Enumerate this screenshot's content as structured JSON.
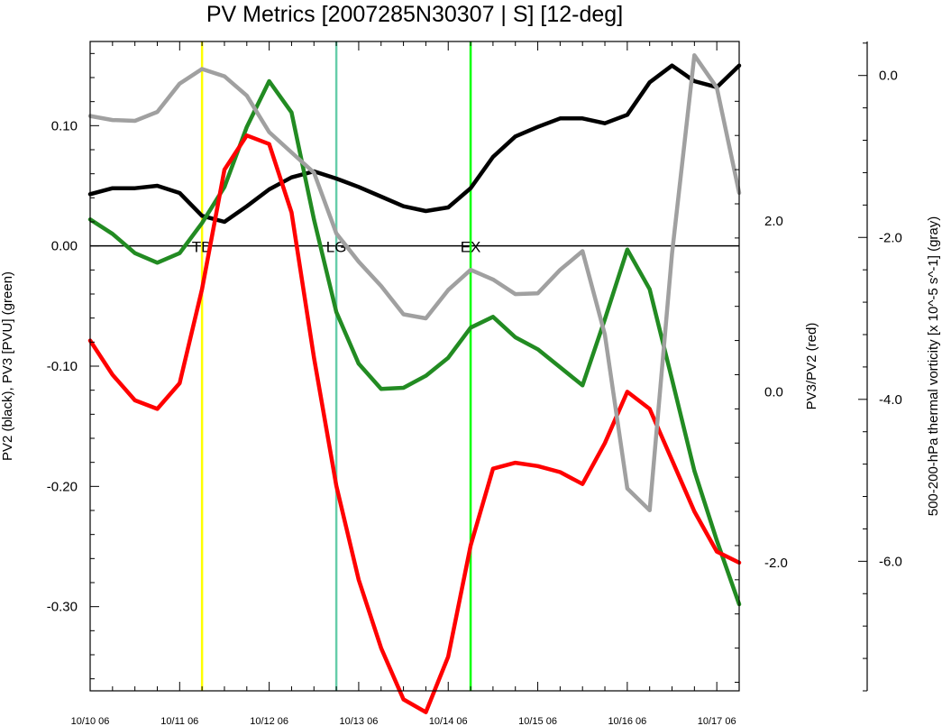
{
  "chart_data": {
    "type": "line",
    "title": "PV Metrics [2007285N30307 | S] [12-deg]",
    "xlabel": "",
    "ylabel_left": "PV2 (black), PV3 [PVU] (green)",
    "ylabel_right": "PV3/PV2 (red)",
    "ylabel_far_right": "500-200-hPa thermal vorticity [x 10^-5 s^-1] (gray)",
    "x_tick_labels": [
      "10/10 06",
      "10/11 06",
      "10/12 06",
      "10/13 06",
      "10/14 06",
      "10/15 06",
      "10/16 06",
      "10/17 06"
    ],
    "x_tick_values": [
      0,
      4,
      8,
      12,
      16,
      20,
      24,
      28
    ],
    "xlim": [
      0,
      29
    ],
    "left_axis": {
      "ylim": [
        -0.37,
        0.17
      ],
      "tick_values": [
        0.1,
        0.0,
        -0.1,
        -0.2,
        -0.3
      ],
      "tick_labels": [
        "0.10",
        "0.00",
        "-0.10",
        "-0.20",
        "-0.30"
      ]
    },
    "right_axis": {
      "ylim": [
        -3.5,
        4.1
      ],
      "tick_values": [
        2.0,
        0.0,
        -2.0
      ],
      "tick_labels": [
        "2.0",
        "0.0",
        "-2.0"
      ]
    },
    "far_right_axis": {
      "ylim": [
        -7.6,
        0.42
      ],
      "tick_values": [
        0.0,
        -2.0,
        -4.0,
        -6.0
      ],
      "tick_labels": [
        "0.0",
        "-2.0",
        "-4.0",
        "-6.0"
      ]
    },
    "zero_line": 0.0,
    "event_markers": [
      {
        "label": "TD",
        "x": 5,
        "color": "#ffff00"
      },
      {
        "label": "LG",
        "x": 11,
        "color": "#66cdaa"
      },
      {
        "label": "EX",
        "x": 17,
        "color": "#00ff00"
      }
    ],
    "series": [
      {
        "name": "PV2",
        "axis": "left",
        "color": "#000000",
        "x": [
          0,
          1,
          2,
          3,
          4,
          5,
          6,
          7,
          8,
          9,
          10,
          11,
          12,
          13,
          14,
          15,
          16,
          17,
          18,
          19,
          20,
          21,
          22,
          23,
          24,
          25,
          26,
          27,
          28,
          29
        ],
        "values": [
          0.043,
          0.048,
          0.048,
          0.05,
          0.044,
          0.025,
          0.02,
          0.033,
          0.047,
          0.057,
          0.062,
          0.056,
          0.049,
          0.041,
          0.033,
          0.029,
          0.032,
          0.048,
          0.074,
          0.091,
          0.099,
          0.106,
          0.106,
          0.102,
          0.109,
          0.136,
          0.15,
          0.137,
          0.132,
          0.15
        ]
      },
      {
        "name": "PV3",
        "axis": "left",
        "color": "#228b22",
        "x": [
          0,
          1,
          2,
          3,
          4,
          5,
          6,
          7,
          8,
          9,
          10,
          11,
          12,
          13,
          14,
          15,
          16,
          17,
          18,
          19,
          20,
          21,
          22,
          23,
          24,
          25,
          26,
          27,
          28,
          29
        ],
        "values": [
          0.022,
          0.01,
          -0.006,
          -0.014,
          -0.006,
          0.019,
          0.049,
          0.099,
          0.137,
          0.111,
          0.022,
          -0.055,
          -0.098,
          -0.119,
          -0.118,
          -0.108,
          -0.093,
          -0.068,
          -0.059,
          -0.076,
          -0.086,
          -0.101,
          -0.116,
          -0.061,
          -0.003,
          -0.036,
          -0.111,
          -0.187,
          -0.245,
          -0.298
        ]
      },
      {
        "name": "PV3/PV2",
        "axis": "right",
        "color": "#ff0000",
        "x": [
          0,
          1,
          2,
          3,
          4,
          5,
          6,
          7,
          8,
          9,
          10,
          11,
          12,
          13,
          14,
          15,
          16,
          17,
          18,
          19,
          20,
          21,
          22,
          23,
          24,
          25,
          26,
          27,
          28,
          29
        ],
        "values": [
          0.6,
          0.2,
          -0.1,
          -0.2,
          0.1,
          1.2,
          2.6,
          3.0,
          2.9,
          2.1,
          0.4,
          -1.1,
          -2.2,
          -3.0,
          -3.6,
          -3.75,
          -3.1,
          -1.8,
          -0.9,
          -0.83,
          -0.87,
          -0.94,
          -1.08,
          -0.6,
          0.0,
          -0.2,
          -0.8,
          -1.4,
          -1.87,
          -2.0
        ]
      },
      {
        "name": "thermal vorticity",
        "axis": "far_right",
        "color": "#a0a0a0",
        "x": [
          0,
          1,
          2,
          3,
          4,
          5,
          6,
          7,
          8,
          9,
          10,
          11,
          12,
          13,
          14,
          15,
          16,
          17,
          18,
          19,
          20,
          21,
          22,
          23,
          24,
          25,
          26,
          27,
          28,
          29
        ],
        "values": [
          -0.5,
          -0.55,
          -0.56,
          -0.45,
          -0.1,
          0.08,
          -0.01,
          -0.25,
          -0.7,
          -0.95,
          -1.2,
          -1.95,
          -2.3,
          -2.6,
          -2.95,
          -3.0,
          -2.65,
          -2.4,
          -2.52,
          -2.7,
          -2.69,
          -2.4,
          -2.17,
          -3.2,
          -5.1,
          -5.37,
          -2.2,
          0.25,
          -0.15,
          -1.45
        ]
      }
    ],
    "colors": {
      "pv2": "#000000",
      "pv3": "#228b22",
      "ratio": "#ff0000",
      "vorticity": "#a0a0a0",
      "zero_line": "#000000"
    }
  }
}
